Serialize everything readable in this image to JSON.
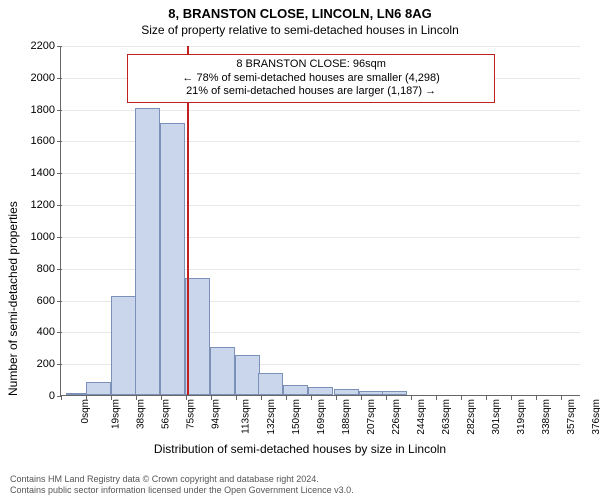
{
  "title_main": "8, BRANSTON CLOSE, LINCOLN, LN6 8AG",
  "title_sub": "Size of property relative to semi-detached houses in Lincoln",
  "ylabel": "Number of semi-detached properties",
  "xlabel": "Distribution of semi-detached houses by size in Lincoln",
  "footer_line1": "Contains HM Land Registry data © Crown copyright and database right 2024.",
  "footer_line2": "Contains public sector information licensed under the Open Government Licence v3.0.",
  "chart": {
    "type": "histogram",
    "background_color": "#ffffff",
    "grid_color": "#e8e8e8",
    "axis_color": "#666666",
    "bar_fill": "#c9d6ec",
    "bar_stroke": "#7c90b8",
    "marker_color": "#c02020",
    "ylim": [
      0,
      2200
    ],
    "ytick_step": 200,
    "yticks": [
      0,
      200,
      400,
      600,
      800,
      1000,
      1200,
      1400,
      1600,
      1800,
      2000,
      2200
    ],
    "xlim": [
      0,
      395
    ],
    "xtick_step": 19,
    "xticks": [
      "0sqm",
      "19sqm",
      "38sqm",
      "56sqm",
      "75sqm",
      "94sqm",
      "113sqm",
      "132sqm",
      "150sqm",
      "169sqm",
      "188sqm",
      "207sqm",
      "226sqm",
      "244sqm",
      "263sqm",
      "282sqm",
      "301sqm",
      "319sqm",
      "338sqm",
      "357sqm",
      "376sqm"
    ],
    "bins_start": [
      4,
      19,
      38,
      56,
      75,
      94,
      113,
      132,
      150,
      169,
      188,
      207,
      226,
      244
    ],
    "bin_width_sqm": 19,
    "values": [
      10,
      80,
      625,
      1805,
      1710,
      735,
      300,
      250,
      140,
      60,
      50,
      35,
      25,
      25
    ],
    "marker_sqm": 96,
    "callout": {
      "line1": "8 BRANSTON CLOSE: 96sqm",
      "line2": "← 78% of semi-detached houses are smaller (4,298)",
      "line3": "21% of semi-detached houses are larger (1,187) →",
      "left_sqm": 50,
      "width_sqm": 280,
      "top_y": 2150,
      "height_y": 280
    },
    "label_fontsize": 12,
    "tick_fontsize": 11,
    "xtick_fontsize": 10
  }
}
